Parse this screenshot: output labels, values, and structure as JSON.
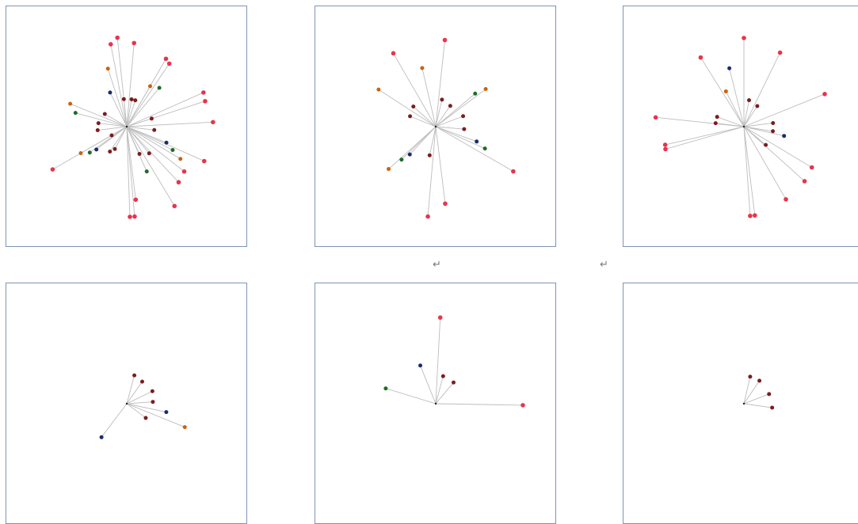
{
  "colors": {
    "border": "#7f93b3",
    "edge": "#bdbdbd",
    "red": "#e8344c",
    "darkred": "#7a1e1e",
    "orange": "#c9630f",
    "navy": "#1c2a6e",
    "green": "#1f6b28",
    "hub": "#222222"
  },
  "paragraph_marks": [
    "↵",
    "↵"
  ],
  "panels": [
    {
      "id": "panel-1",
      "nodes": [
        {
          "a": 96,
          "r": 113,
          "c": "red",
          "label": ""
        },
        {
          "a": 101,
          "r": 106,
          "c": "red",
          "label": ""
        },
        {
          "a": 85,
          "r": 106,
          "c": "red",
          "label": ""
        },
        {
          "a": 60,
          "r": 99,
          "c": "red",
          "label": ""
        },
        {
          "a": 56,
          "r": 96,
          "c": "red",
          "label": ""
        },
        {
          "a": 24,
          "r": 106,
          "c": "red",
          "label": ""
        },
        {
          "a": 18,
          "r": 104,
          "c": "red",
          "label": ""
        },
        {
          "a": 3,
          "r": 109,
          "c": "red",
          "label": ""
        },
        {
          "a": -24,
          "r": 107,
          "c": "red",
          "label": ""
        },
        {
          "a": -38,
          "r": 92,
          "c": "red",
          "label": ""
        },
        {
          "a": -47,
          "r": 96,
          "c": "red",
          "label": ""
        },
        {
          "a": -59,
          "r": 117,
          "c": "red",
          "label": ""
        },
        {
          "a": -83,
          "r": 93,
          "c": "red",
          "label": ""
        },
        {
          "a": -85,
          "r": 114,
          "c": "red",
          "label": ""
        },
        {
          "a": -88,
          "r": 114,
          "c": "red",
          "label": ""
        },
        {
          "a": -150,
          "r": 108,
          "c": "red",
          "label": ""
        },
        {
          "a": 108,
          "r": 77,
          "c": "orange",
          "label": ""
        },
        {
          "a": 116,
          "r": 48,
          "c": "navy",
          "label": ""
        },
        {
          "a": 50,
          "r": 64,
          "c": "green",
          "label": ""
        },
        {
          "a": 60,
          "r": 59,
          "c": "orange",
          "label": ""
        },
        {
          "a": 158,
          "r": 77,
          "c": "orange",
          "label": ""
        },
        {
          "a": 165,
          "r": 67,
          "c": "green",
          "label": ""
        },
        {
          "a": -150,
          "r": 67,
          "c": "orange",
          "label": ""
        },
        {
          "a": -145,
          "r": 57,
          "c": "green",
          "label": ""
        },
        {
          "a": -143,
          "r": 48,
          "c": "navy",
          "label": ""
        },
        {
          "a": -22,
          "r": 54,
          "c": "navy",
          "label": ""
        },
        {
          "a": -27,
          "r": 65,
          "c": "green",
          "label": ""
        },
        {
          "a": -31,
          "r": 79,
          "c": "orange",
          "label": ""
        },
        {
          "a": -66,
          "r": 62,
          "c": "green",
          "label": ""
        },
        {
          "a": -50,
          "r": 44,
          "c": "darkred",
          "label": ""
        },
        {
          "a": 72,
          "r": 35,
          "c": "darkred",
          "label": ""
        },
        {
          "a": 96,
          "r": 35,
          "c": "darkred",
          "label": ""
        },
        {
          "a": 80,
          "r": 35,
          "c": "darkred",
          "label": ""
        },
        {
          "a": 150,
          "r": 32,
          "c": "darkred",
          "label": ""
        },
        {
          "a": 173,
          "r": 36,
          "c": "darkred",
          "label": ""
        },
        {
          "a": -173,
          "r": 37,
          "c": "darkred",
          "label": ""
        },
        {
          "a": 18,
          "r": 33,
          "c": "darkred",
          "label": ""
        },
        {
          "a": -7,
          "r": 35,
          "c": "darkred",
          "label": ""
        },
        {
          "a": -150,
          "r": 22,
          "c": "darkred",
          "label": ""
        },
        {
          "a": -124,
          "r": 38,
          "c": "darkred",
          "label": ""
        },
        {
          "a": -118,
          "r": 32,
          "c": "darkred",
          "label": ""
        },
        {
          "a": -65,
          "r": 38,
          "c": "darkred",
          "label": ""
        }
      ]
    },
    {
      "id": "panel-2",
      "nodes": [
        {
          "a": 120,
          "r": 107,
          "c": "red",
          "label": ""
        },
        {
          "a": 103,
          "r": 76,
          "c": "orange",
          "label": ""
        },
        {
          "a": 84,
          "r": 110,
          "c": "red",
          "label": ""
        },
        {
          "a": 147,
          "r": 86,
          "c": "orange",
          "label": ""
        },
        {
          "a": 138,
          "r": 38,
          "c": "darkred",
          "label": ""
        },
        {
          "a": 158,
          "r": 35,
          "c": "darkred",
          "label": ""
        },
        {
          "a": 77,
          "r": 35,
          "c": "darkred",
          "label": ""
        },
        {
          "a": 55,
          "r": 32,
          "c": "darkred",
          "label": ""
        },
        {
          "a": 40,
          "r": 65,
          "c": "green",
          "label": ""
        },
        {
          "a": 37,
          "r": 79,
          "c": "orange",
          "label": ""
        },
        {
          "a": 21,
          "r": 37,
          "c": "darkred",
          "label": ""
        },
        {
          "a": -5,
          "r": 36,
          "c": "darkred",
          "label": ""
        },
        {
          "a": -20,
          "r": 55,
          "c": "navy",
          "label": ""
        },
        {
          "a": -24,
          "r": 68,
          "c": "green",
          "label": ""
        },
        {
          "a": -30,
          "r": 113,
          "c": "red",
          "label": ""
        },
        {
          "a": -83,
          "r": 98,
          "c": "red",
          "label": ""
        },
        {
          "a": -95,
          "r": 114,
          "c": "red",
          "label": ""
        },
        {
          "a": -102,
          "r": 37,
          "c": "darkred",
          "label": ""
        },
        {
          "a": -133,
          "r": 48,
          "c": "navy",
          "label": ""
        },
        {
          "a": -136,
          "r": 60,
          "c": "green",
          "label": ""
        },
        {
          "a": -138,
          "r": 80,
          "c": "orange",
          "label": ""
        }
      ]
    },
    {
      "id": "panel-3",
      "nodes": [
        {
          "a": 122,
          "r": 103,
          "c": "red",
          "label": ""
        },
        {
          "a": 104,
          "r": 76,
          "c": "navy",
          "label": ""
        },
        {
          "a": 117,
          "r": 50,
          "c": "orange",
          "label": ""
        },
        {
          "a": 90,
          "r": 112,
          "c": "red",
          "label": ""
        },
        {
          "a": 64,
          "r": 104,
          "c": "red",
          "label": ""
        },
        {
          "a": 79,
          "r": 34,
          "c": "darkred",
          "label": ""
        },
        {
          "a": 57,
          "r": 31,
          "c": "darkred",
          "label": ""
        },
        {
          "a": 22,
          "r": 110,
          "c": "red",
          "label": ""
        },
        {
          "a": 160,
          "r": 36,
          "c": "darkred",
          "label": ""
        },
        {
          "a": 173,
          "r": 36,
          "c": "darkred",
          "label": ""
        },
        {
          "a": 174,
          "r": 112,
          "c": "red",
          "label": ""
        },
        {
          "a": -167,
          "r": 102,
          "c": "red",
          "label": ""
        },
        {
          "a": -164,
          "r": 103,
          "c": "red",
          "label": ""
        },
        {
          "a": 7,
          "r": 37,
          "c": "darkred",
          "label": ""
        },
        {
          "a": -9,
          "r": 37,
          "c": "darkred",
          "label": ""
        },
        {
          "a": -13,
          "r": 52,
          "c": "navy",
          "label": ""
        },
        {
          "a": -40,
          "r": 36,
          "c": "darkred",
          "label": ""
        },
        {
          "a": -31,
          "r": 100,
          "c": "red",
          "label": ""
        },
        {
          "a": -42,
          "r": 103,
          "c": "red",
          "label": ""
        },
        {
          "a": -60,
          "r": 106,
          "c": "red",
          "label": ""
        },
        {
          "a": -83,
          "r": 113,
          "c": "red",
          "label": ""
        },
        {
          "a": -86,
          "r": 113,
          "c": "red",
          "label": ""
        }
      ]
    },
    {
      "id": "panel-4",
      "nodes": [
        {
          "a": 75,
          "r": 37,
          "c": "darkred",
          "label": ""
        },
        {
          "a": 55,
          "r": 34,
          "c": "darkred",
          "label": ""
        },
        {
          "a": 26,
          "r": 36,
          "c": "darkred",
          "label": ""
        },
        {
          "a": 4,
          "r": 33,
          "c": "darkred",
          "label": ""
        },
        {
          "a": -12,
          "r": 51,
          "c": "navy",
          "label": ""
        },
        {
          "a": -22,
          "r": 79,
          "c": "orange",
          "label": ""
        },
        {
          "a": -37,
          "r": 30,
          "c": "darkred",
          "label": ""
        },
        {
          "a": -127,
          "r": 53,
          "c": "navy",
          "label": ""
        }
      ]
    },
    {
      "id": "panel-5",
      "nodes": [
        {
          "a": 87,
          "r": 109,
          "c": "red",
          "label": ""
        },
        {
          "a": 112,
          "r": 52,
          "c": "navy",
          "label": ""
        },
        {
          "a": 75,
          "r": 36,
          "c": "darkred",
          "label": ""
        },
        {
          "a": 50,
          "r": 35,
          "c": "darkred",
          "label": ""
        },
        {
          "a": 163,
          "r": 66,
          "c": "green",
          "label": ""
        },
        {
          "a": -1,
          "r": 110,
          "c": "red",
          "label": ""
        }
      ]
    },
    {
      "id": "panel-6",
      "nodes": [
        {
          "a": 77,
          "r": 35,
          "c": "darkred",
          "label": ""
        },
        {
          "a": 56,
          "r": 35,
          "c": "darkred",
          "label": ""
        },
        {
          "a": 21,
          "r": 34,
          "c": "darkred",
          "label": ""
        },
        {
          "a": -8,
          "r": 36,
          "c": "darkred",
          "label": ""
        }
      ]
    }
  ]
}
